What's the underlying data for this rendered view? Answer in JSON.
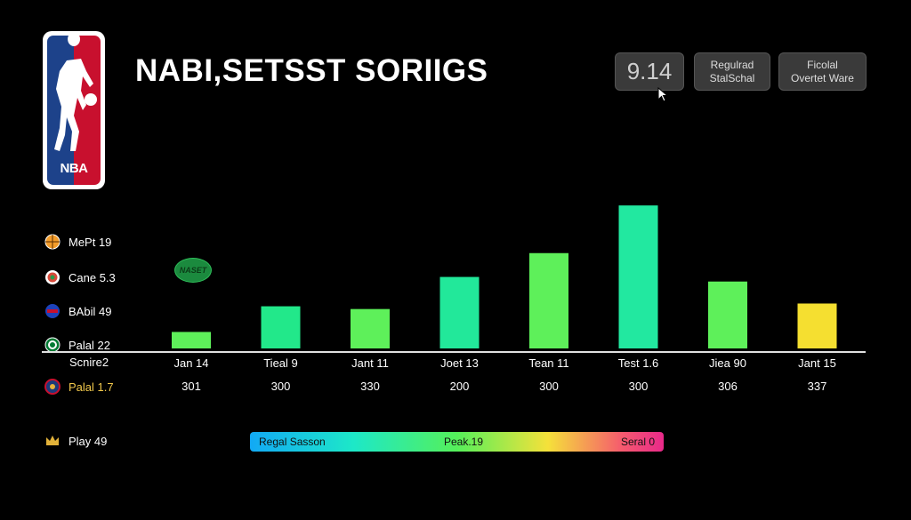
{
  "logo": {
    "text": "NBA"
  },
  "header": {
    "title": "NABI,SETSST SORIIGS",
    "value_display": "9.14",
    "button_a": [
      "Regulrad",
      "StalSchal"
    ],
    "button_b": [
      "Ficolal",
      "Overtet Ware"
    ]
  },
  "legend": [
    {
      "label": "MePt 19",
      "icon": "basketball-icon"
    },
    {
      "label": "Cane 5.3",
      "icon": "team-icon"
    },
    {
      "label": "BAbil 49",
      "icon": "pistons-icon"
    },
    {
      "label": "Palal 22",
      "icon": "celtics-icon"
    }
  ],
  "badge": "NASET",
  "score_label": "Scnire2",
  "palal_row": {
    "label": "Palal 1.7",
    "icon": "pelicans-icon"
  },
  "play_row": {
    "label": "Play 49",
    "icon": "crown-icon"
  },
  "gradient_bar": {
    "left": "Regal Sasson",
    "mid": "Peak.19",
    "right": "Seral 0"
  },
  "colors": {
    "green": "#5ef05a",
    "teal": "#22e8a0",
    "yellow": "#f5df30",
    "axis": "#e0e0e0"
  },
  "chart_data": {
    "type": "bar",
    "title": "NABI,SETSST SORIIGS",
    "categories": [
      "Jan 14",
      "Tieal 9",
      "Jant 11",
      "Joet 13",
      "Tean 11",
      "Test 1.6",
      "Jiea 90",
      "Jant 15"
    ],
    "values": [
      18,
      46,
      43,
      78,
      104,
      156,
      73,
      49
    ],
    "row_values": [
      "301",
      "300",
      "330",
      "200",
      "300",
      "300",
      "306",
      "337"
    ],
    "bar_colors": [
      "#5ef05a",
      "#22e88a",
      "#5ef05a",
      "#22e89a",
      "#5ef05a",
      "#22e8a0",
      "#5ef05a",
      "#f5df30"
    ],
    "ylim": [
      0,
      160
    ],
    "xlabel": "",
    "ylabel": ""
  }
}
